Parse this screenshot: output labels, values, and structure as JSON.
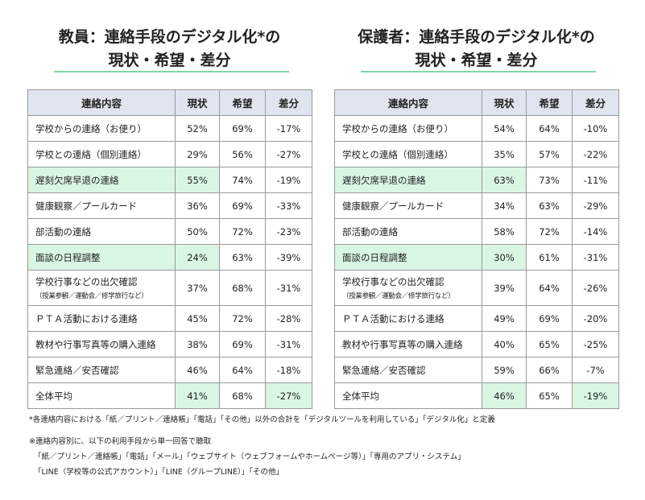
{
  "teacher": {
    "title_line1": "教員：連絡手段のデジタル化*の",
    "title_line2": "現状・希望・差分",
    "headers": [
      "連絡内容",
      "現状",
      "希望",
      "差分"
    ],
    "rows": [
      {
        "item": "学校からの連絡（お便り）",
        "current": "52%",
        "hope": "69%",
        "diff": "-17%"
      },
      {
        "item": "学校との連絡（個別連絡）",
        "current": "29%",
        "hope": "56%",
        "diff": "-27%"
      },
      {
        "item": "遅刻欠席早退の連絡",
        "current": "55%",
        "hope": "74%",
        "diff": "-19%"
      },
      {
        "item": "健康観察／プールカード",
        "current": "36%",
        "hope": "69%",
        "diff": "-33%"
      },
      {
        "item": "部活動の連絡",
        "current": "50%",
        "hope": "72%",
        "diff": "-23%"
      },
      {
        "item": "面談の日程調整",
        "current": "24%",
        "hope": "63%",
        "diff": "-39%"
      },
      {
        "item": "学校行事などの出欠確認",
        "sub": "（授業参観／運動会／修学旅行など）",
        "current": "37%",
        "hope": "68%",
        "diff": "-31%"
      },
      {
        "item": "ＰＴＡ活動における連絡",
        "current": "45%",
        "hope": "72%",
        "diff": "-28%"
      },
      {
        "item": "教材や行事写真等の購入連絡",
        "current": "38%",
        "hope": "69%",
        "diff": "-31%"
      },
      {
        "item": "緊急連絡／安否確認",
        "current": "46%",
        "hope": "64%",
        "diff": "-18%"
      },
      {
        "item": "全体平均",
        "current": "41%",
        "hope": "68%",
        "diff": "-27%"
      }
    ]
  },
  "guardian": {
    "title_line1": "保護者：連絡手段のデジタル化*の",
    "title_line2": "現状・希望・差分",
    "headers": [
      "連絡内容",
      "現状",
      "希望",
      "差分"
    ],
    "rows": [
      {
        "item": "学校からの連絡（お便り）",
        "current": "54%",
        "hope": "64%",
        "diff": "-10%"
      },
      {
        "item": "学校との連絡（個別連絡）",
        "current": "35%",
        "hope": "57%",
        "diff": "-22%"
      },
      {
        "item": "遅刻欠席早退の連絡",
        "current": "63%",
        "hope": "73%",
        "diff": "-11%"
      },
      {
        "item": "健康観察／プールカード",
        "current": "34%",
        "hope": "63%",
        "diff": "-29%"
      },
      {
        "item": "部活動の連絡",
        "current": "58%",
        "hope": "72%",
        "diff": "-14%"
      },
      {
        "item": "面談の日程調整",
        "current": "30%",
        "hope": "61%",
        "diff": "-31%"
      },
      {
        "item": "学校行事などの出欠確認",
        "sub": "（授業参観／運動会／修学旅行など）",
        "current": "39%",
        "hope": "64%",
        "diff": "-26%"
      },
      {
        "item": "ＰＴＡ活動における連絡",
        "current": "49%",
        "hope": "69%",
        "diff": "-20%"
      },
      {
        "item": "教材や行事写真等の購入連絡",
        "current": "40%",
        "hope": "65%",
        "diff": "-25%"
      },
      {
        "item": "緊急連絡／安否確認",
        "current": "59%",
        "hope": "66%",
        "diff": "-7%"
      },
      {
        "item": "全体平均",
        "current": "46%",
        "hope": "65%",
        "diff": "-19%"
      }
    ]
  },
  "notes": {
    "line1": "*各連絡内容における「紙／プリント／連絡帳」「電話」「その他」以外の合計を「デジタルツールを利用している」「デジタル化」と定義",
    "line2": "※連絡内容別に、以下の利用手段から単一回答で聴取",
    "line3": "「紙／プリント／連絡帳」「電話」「メール」「ウェブサイト（ウェブフォームやホームページ等）」「専用のアプリ・システム」",
    "line4": "「LINE（学校等の公式アカウント）」「LINE（グループLINE）」「その他」"
  },
  "colors": {
    "highlight": "#d9f6e3",
    "header_bg": "#dfe4ee",
    "accent_rule": "#7fd6a6"
  }
}
